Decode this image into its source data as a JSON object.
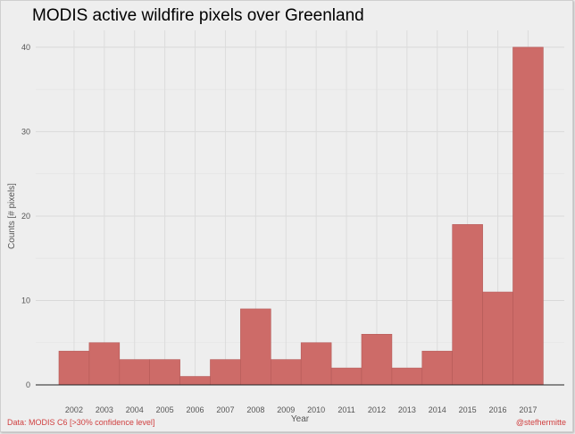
{
  "chart_data": {
    "type": "bar",
    "title": "MODIS active wildfire pixels over Greenland",
    "xlabel": "Year",
    "ylabel": "Counts [# pixels]",
    "categories": [
      "2002",
      "2003",
      "2004",
      "2005",
      "2006",
      "2007",
      "2008",
      "2009",
      "2010",
      "2011",
      "2012",
      "2013",
      "2014",
      "2015",
      "2016",
      "2017"
    ],
    "values": [
      4,
      5,
      3,
      3,
      1,
      3,
      9,
      3,
      5,
      2,
      6,
      2,
      4,
      19,
      11,
      40
    ],
    "ylim": [
      0,
      42
    ],
    "yticks": [
      0,
      10,
      20,
      30,
      40
    ],
    "grid": true,
    "bar_color": "#cd6b68",
    "source_note": "Data: MODIS C6 [>30% confidence level]",
    "credit": "@stefhermitte"
  }
}
